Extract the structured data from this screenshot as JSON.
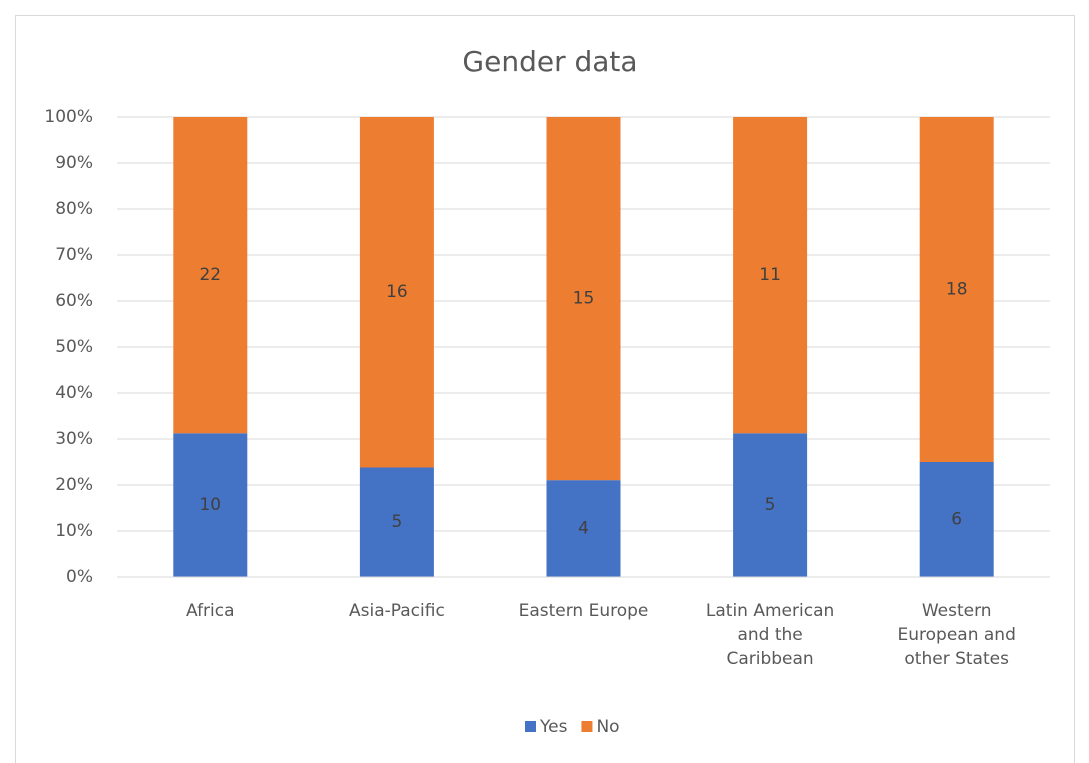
{
  "chart_data": {
    "type": "bar",
    "stacking": "percent",
    "title": "Gender data",
    "categories": [
      "Africa",
      "Asia-Pacific",
      "Eastern Europe",
      "Latin American and the Caribbean",
      "Western European and other States"
    ],
    "series": [
      {
        "name": "Yes",
        "color": "#4472c4",
        "values": [
          10,
          5,
          4,
          5,
          6
        ]
      },
      {
        "name": "No",
        "color": "#ed7d31",
        "values": [
          22,
          16,
          15,
          11,
          18
        ]
      }
    ],
    "ylim": [
      0,
      100
    ],
    "yticks": [
      {
        "value": 0,
        "label": "0%"
      },
      {
        "value": 10,
        "label": "10%"
      },
      {
        "value": 20,
        "label": "20%"
      },
      {
        "value": 30,
        "label": "30%"
      },
      {
        "value": 40,
        "label": "40%"
      },
      {
        "value": 50,
        "label": "50%"
      },
      {
        "value": 60,
        "label": "60%"
      },
      {
        "value": 70,
        "label": "70%"
      },
      {
        "value": 80,
        "label": "80%"
      },
      {
        "value": 90,
        "label": "90%"
      },
      {
        "value": 100,
        "label": "100%"
      }
    ],
    "grid": true,
    "legend": "bottom"
  }
}
